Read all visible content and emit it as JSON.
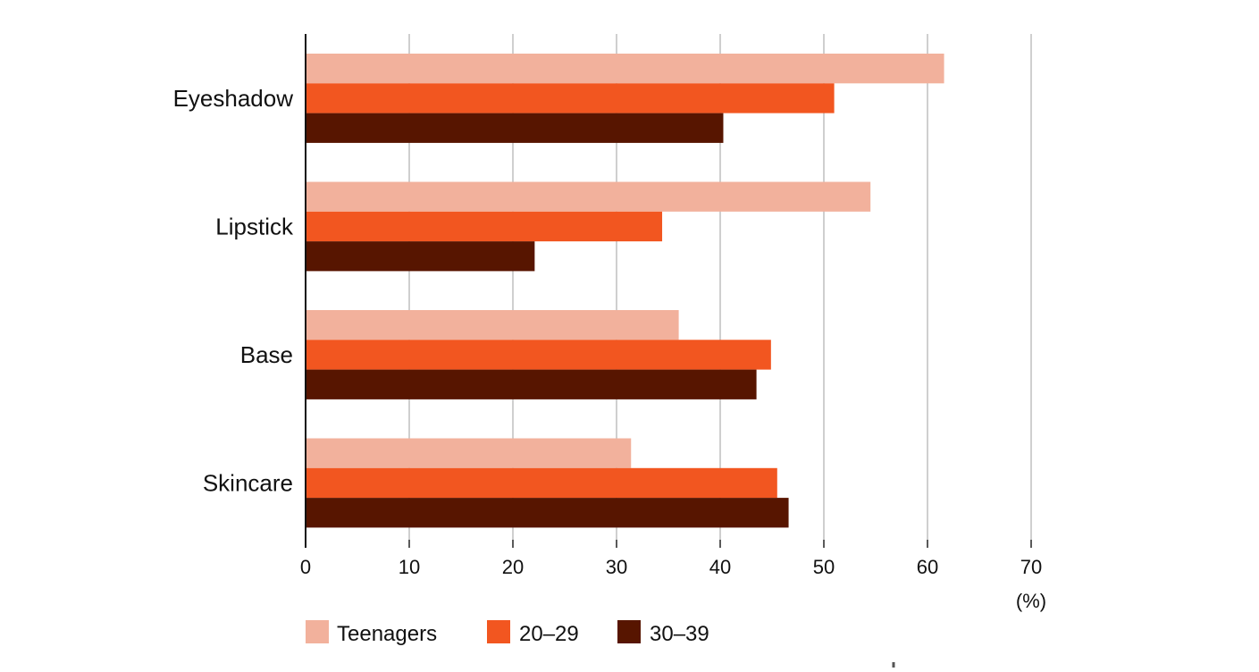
{
  "chart_data": {
    "type": "bar",
    "orientation": "horizontal",
    "categories": [
      "Eyeshadow",
      "Lipstick",
      "Base",
      "Skincare"
    ],
    "series": [
      {
        "name": "Teenagers",
        "color": "#f2b19c",
        "values": [
          61.6,
          54.5,
          36.0,
          31.4
        ]
      },
      {
        "name": "20–29",
        "color": "#f25620",
        "values": [
          51.0,
          34.4,
          44.9,
          45.5
        ]
      },
      {
        "name": "30–39",
        "color": "#571500",
        "values": [
          40.3,
          22.1,
          43.5,
          46.6
        ]
      }
    ],
    "xlim": [
      0,
      70
    ],
    "xticks": [
      "0",
      "10",
      "20",
      "30",
      "40",
      "50",
      "60",
      "70"
    ],
    "x_unit_label": "(%)",
    "grid": "vertical",
    "legend_position": "bottom-left"
  }
}
